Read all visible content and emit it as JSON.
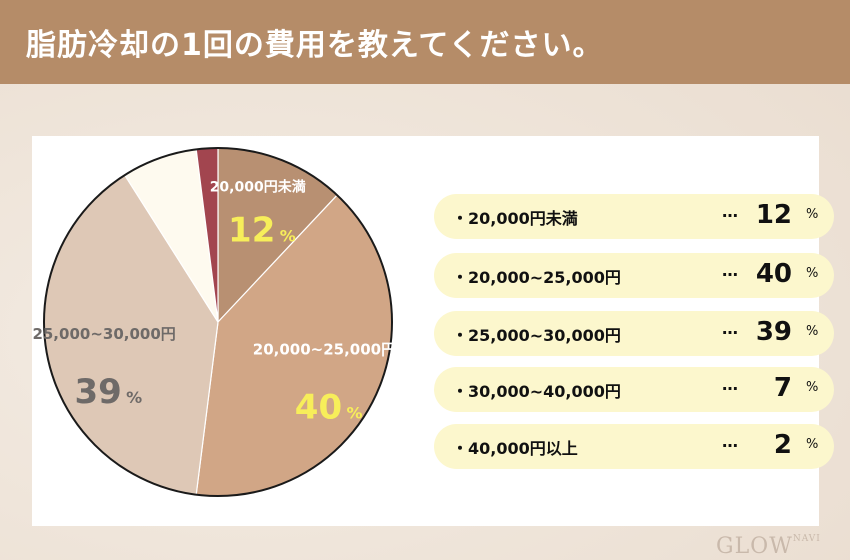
{
  "header": {
    "title": "脂肪冷却の1回の費用を教えてください。"
  },
  "brand": {
    "name": "GLOW",
    "suffix": "NAVI"
  },
  "colors": {
    "header_bg": "#b58c68",
    "legend_bg": "#fcf7cd",
    "label_yellow": "#f7ee5a",
    "label_gray": "#6e6a68"
  },
  "chart_data": {
    "type": "pie",
    "unit": "%",
    "slices": [
      {
        "label": "20,000円未満",
        "value": 12,
        "color": "#b89072",
        "show_label": true,
        "label_color": "#ffffff",
        "value_color": "#f7ee5a"
      },
      {
        "label": "20,000~25,000円",
        "value": 40,
        "color": "#d1a686",
        "show_label": true,
        "label_color": "#ffffff",
        "value_color": "#f7ee5a"
      },
      {
        "label": "25,000~30,000円",
        "value": 39,
        "color": "#dec8b6",
        "show_label": true,
        "label_color": "#6e6a68",
        "value_color": "#6e6a68"
      },
      {
        "label": "30,000~40,000円",
        "value": 7,
        "color": "#fefaef",
        "show_label": false
      },
      {
        "label": "40,000円以上",
        "value": 2,
        "color": "#a2454f",
        "show_label": false
      }
    ]
  },
  "legend": {
    "bullet": "・",
    "dots": "…",
    "unit": "%",
    "items": [
      {
        "label": "20,000円未満",
        "value": "12"
      },
      {
        "label": "20,000~25,000円",
        "value": "40"
      },
      {
        "label": "25,000~30,000円",
        "value": "39"
      },
      {
        "label": "30,000~40,000円",
        "value": "7"
      },
      {
        "label": "40,000円以上",
        "value": "2"
      }
    ]
  }
}
